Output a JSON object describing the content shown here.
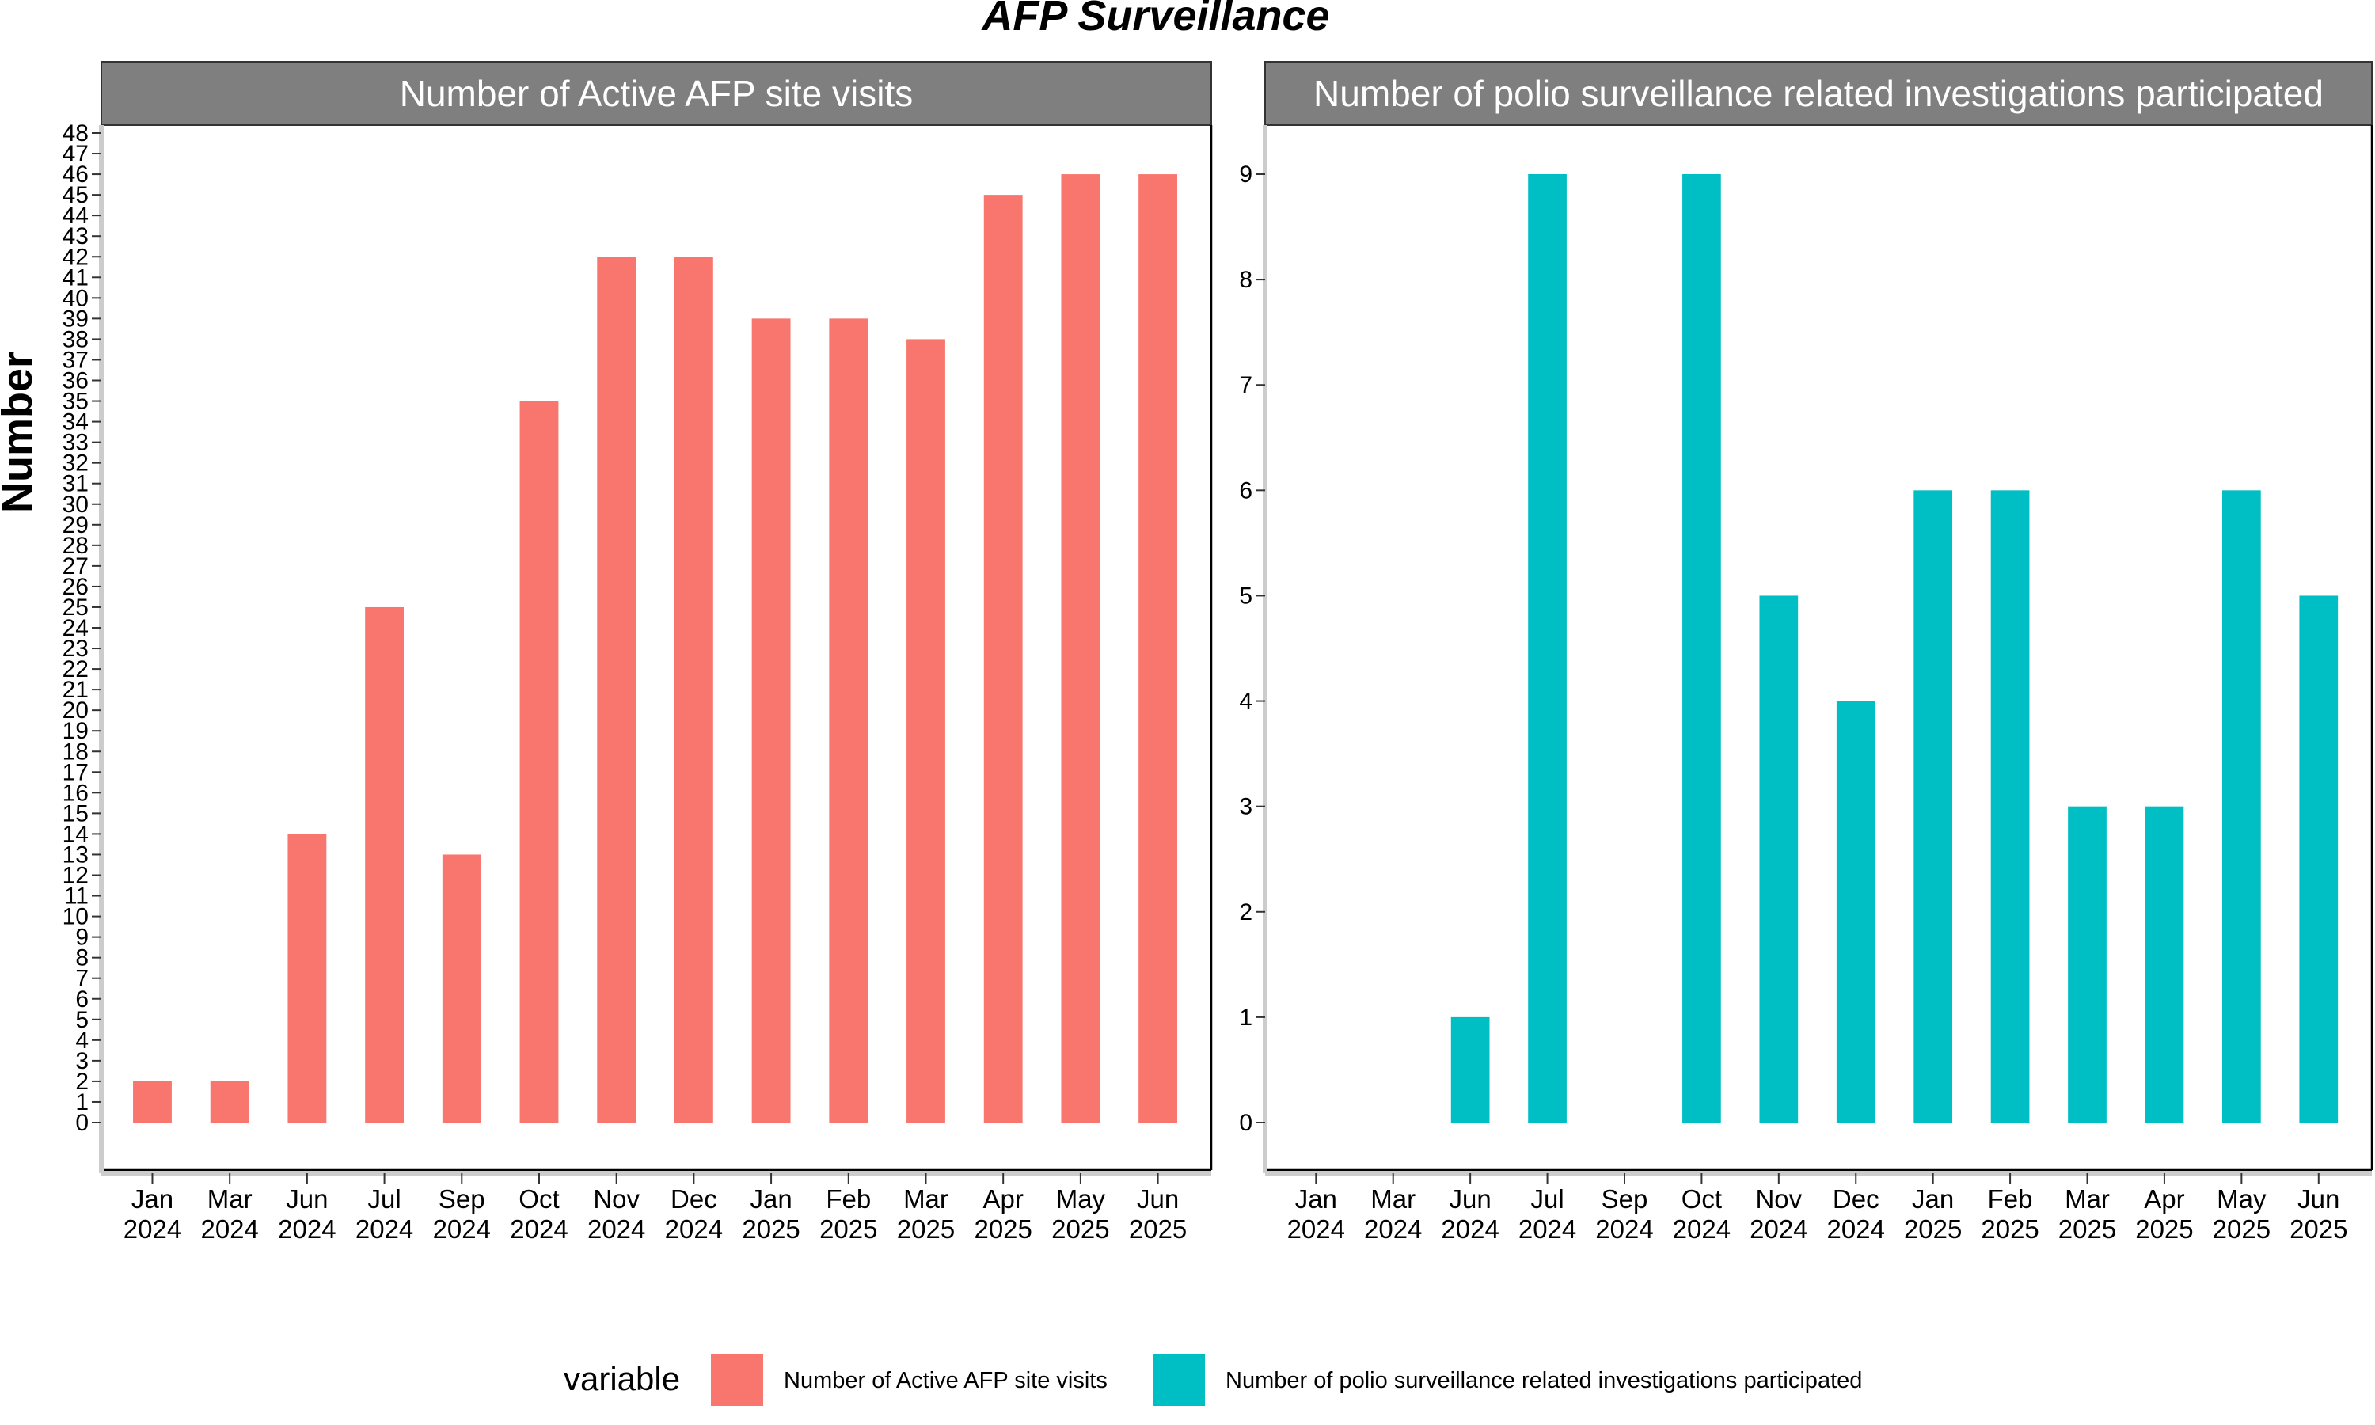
{
  "title": "AFP Surveillance",
  "ylabel": "Number",
  "legend": {
    "title": "variable",
    "position": "bottom",
    "entries": [
      {
        "label": "Number of Active AFP site visits",
        "color": "#F8766D"
      },
      {
        "label": "Number of polio surveillance related investigations participated",
        "color": "#00BFC4"
      }
    ]
  },
  "chart_data": [
    {
      "type": "bar",
      "panel_title": "Number of Active AFP site visits",
      "color": "#F8766D",
      "categories": [
        "Jan 2024",
        "Mar 2024",
        "Jun 2024",
        "Jul 2024",
        "Sep 2024",
        "Oct 2024",
        "Nov 2024",
        "Dec 2024",
        "Jan 2025",
        "Feb 2025",
        "Mar 2025",
        "Apr 2025",
        "May 2025",
        "Jun 2025"
      ],
      "values": [
        2,
        2,
        14,
        25,
        13,
        35,
        42,
        42,
        39,
        39,
        38,
        45,
        46,
        46
      ],
      "ylim": [
        0,
        48
      ],
      "yticks": [
        0,
        1,
        2,
        3,
        4,
        5,
        6,
        7,
        8,
        9,
        10,
        11,
        12,
        13,
        14,
        15,
        16,
        17,
        18,
        19,
        20,
        21,
        22,
        23,
        24,
        25,
        26,
        27,
        28,
        29,
        30,
        31,
        32,
        33,
        34,
        35,
        36,
        37,
        38,
        39,
        40,
        41,
        42,
        43,
        44,
        45,
        46,
        47,
        48
      ],
      "grid": false
    },
    {
      "type": "bar",
      "panel_title": "Number of polio surveillance related investigations participated",
      "color": "#00BFC4",
      "categories": [
        "Jan 2024",
        "Mar 2024",
        "Jun 2024",
        "Jul 2024",
        "Sep 2024",
        "Oct 2024",
        "Nov 2024",
        "Dec 2024",
        "Jan 2025",
        "Feb 2025",
        "Mar 2025",
        "Apr 2025",
        "May 2025",
        "Jun 2025"
      ],
      "values": [
        null,
        null,
        1,
        9,
        null,
        9,
        5,
        4,
        6,
        6,
        3,
        3,
        6,
        5
      ],
      "ylim": [
        0,
        9
      ],
      "yticks": [
        0,
        1,
        2,
        3,
        4,
        5,
        6,
        7,
        8,
        9
      ],
      "grid": false
    }
  ]
}
